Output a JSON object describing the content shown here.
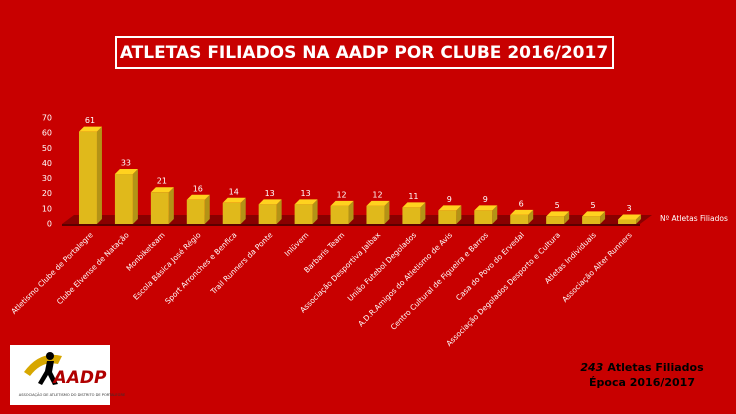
{
  "chart_data": {
    "type": "bar",
    "title": "ATLETAS FILIADOS NA AADP POR CLUBE 2016/2017",
    "categories": [
      "Atletismo Clube de Portalegre",
      "Clube Elvense de Natação",
      "Monbiketeam",
      "Escola Básica José Régio",
      "Sport Arronches e Benfica",
      "Trail Runners da Ponte",
      "Inlüvem",
      "Barbaris Team",
      "Associação Desportiva Jalbax",
      "União Futebol Degolados",
      "A.D.R.Amigos do Atletismo de Avis",
      "Centro Cultural de Figueira e Barros",
      "Casa do Povo do Ervedal",
      "Associação Degolados Desporto e Cultura",
      "Atletas Individuais",
      "Associação Alter Runners"
    ],
    "series": [
      {
        "name": "Nº Atletas Filiados",
        "color": "#ffd21f",
        "values": [
          61,
          33,
          21,
          16,
          14,
          13,
          13,
          12,
          12,
          11,
          9,
          9,
          6,
          5,
          5,
          3
        ]
      }
    ],
    "ylim": [
      0,
      70
    ],
    "yticks": [
      0,
      10,
      20,
      30,
      40,
      50,
      60,
      70
    ],
    "grid": false,
    "total": 243,
    "total_label": "Atletas Filiados",
    "season": "Época 2016/2017",
    "logo": {
      "name": "AADP",
      "subtitle": "ASSOCIAÇÃO DE ATLETISMO DO DISTRITO DE PORTALEGRE"
    }
  }
}
